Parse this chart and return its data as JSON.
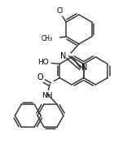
{
  "bg_color": "#ffffff",
  "line_color": "#3a3a3a",
  "text_color": "#000000",
  "line_width": 1.1,
  "figsize": [
    1.56,
    1.94
  ],
  "dpi": 100,
  "xlim": [
    0,
    156
  ],
  "ylim": [
    0,
    194
  ]
}
